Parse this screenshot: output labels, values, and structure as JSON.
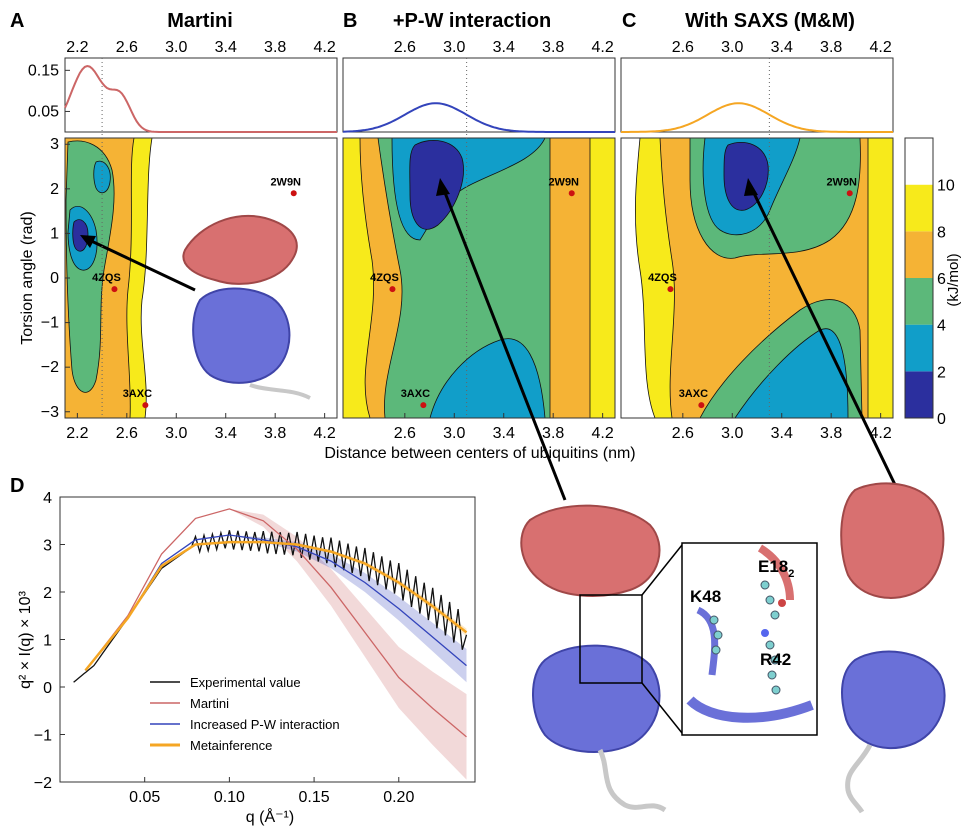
{
  "panels": [
    {
      "letter": "A",
      "title": "Martini"
    },
    {
      "letter": "B",
      "title": "+P-W interaction"
    },
    {
      "letter": "C",
      "title": "With SAXS (M&M)"
    },
    {
      "letter": "D",
      "title": ""
    }
  ],
  "colors": {
    "martini": "#cc6666",
    "pw": "#3344bb",
    "metainference": "#f5a623",
    "experimental": "#111111",
    "contour_levels": [
      "#2b2f9e",
      "#119ec9",
      "#5cb87a",
      "#f5b335",
      "#f7ea1b",
      "#ffffff"
    ],
    "structure_top": "#d87070",
    "structure_bottom": "#6a70d8",
    "structure_tail": "#c8c8c8"
  },
  "structures": {
    "labels": [
      "2W9N",
      "4ZQS",
      "3AXC"
    ],
    "residues": [
      "K48",
      "E18",
      "R42"
    ],
    "residue_subscript": "2"
  },
  "chart_data": [
    {
      "type": "heatmap",
      "panel": "A",
      "title": "Martini",
      "xlabel": "Distance between centers of ubiquitins (nm)",
      "ylabel": "Torsion angle (rad)",
      "xlim": [
        2.1,
        4.3
      ],
      "ylim": [
        -3.14,
        3.14
      ],
      "xticks": [
        "2.2",
        "2.6",
        "3.0",
        "3.4",
        "3.8",
        "4.2"
      ],
      "yticks": [
        "3",
        "2",
        "1",
        "0",
        "−1",
        "−2",
        "−3"
      ],
      "reference_points": [
        {
          "label": "2W9N",
          "x": 3.95,
          "y": 1.9
        },
        {
          "label": "4ZQS",
          "x": 2.5,
          "y": -0.25
        },
        {
          "label": "3AXC",
          "x": 2.75,
          "y": -2.85
        }
      ],
      "marginal": {
        "ylim": [
          0,
          0.18
        ],
        "yticks": [
          "0.15",
          "0.05"
        ],
        "peak_x": 2.28,
        "peak_y": 0.16
      }
    },
    {
      "type": "heatmap",
      "panel": "B",
      "title": "+P-W interaction",
      "xlim": [
        2.1,
        4.3
      ],
      "ylim": [
        -3.14,
        3.14
      ],
      "xticks": [
        "2.6",
        "3.0",
        "3.4",
        "3.8",
        "4.2"
      ],
      "reference_points": [
        {
          "label": "2W9N",
          "x": 3.95,
          "y": 1.9
        },
        {
          "label": "4ZQS",
          "x": 2.5,
          "y": -0.25
        },
        {
          "label": "3AXC",
          "x": 2.75,
          "y": -2.85
        }
      ],
      "marginal": {
        "peak_x": 2.85,
        "peak_y": 0.07
      }
    },
    {
      "type": "heatmap",
      "panel": "C",
      "title": "With SAXS (M&M)",
      "xlim": [
        2.1,
        4.3
      ],
      "ylim": [
        -3.14,
        3.14
      ],
      "xticks": [
        "2.6",
        "3.0",
        "3.4",
        "3.8",
        "4.2"
      ],
      "reference_points": [
        {
          "label": "2W9N",
          "x": 3.95,
          "y": 1.9
        },
        {
          "label": "4ZQS",
          "x": 2.5,
          "y": -0.25
        },
        {
          "label": "3AXC",
          "x": 2.75,
          "y": -2.85
        }
      ],
      "marginal": {
        "peak_x": 3.05,
        "peak_y": 0.07
      },
      "colorbar": {
        "label": "(kJ/mol)",
        "ticks": [
          "0",
          "2",
          "4",
          "6",
          "8",
          "10"
        ],
        "range": [
          0,
          12
        ]
      }
    },
    {
      "type": "line",
      "panel": "D",
      "xlabel": "q (Å⁻¹)",
      "ylabel": "q² × I(q) × 10³",
      "xlim": [
        0.0,
        0.245
      ],
      "ylim": [
        -2,
        4
      ],
      "xticks": [
        "0.05",
        "0.10",
        "0.15",
        "0.20"
      ],
      "yticks": [
        "4",
        "3",
        "2",
        "1",
        "0",
        "−1",
        "−2"
      ],
      "series": [
        {
          "name": "Experimental value",
          "color": "#111111",
          "x": [
            0.008,
            0.02,
            0.04,
            0.06,
            0.08,
            0.1,
            0.12,
            0.14,
            0.16,
            0.18,
            0.2,
            0.22,
            0.24
          ],
          "y": [
            0.1,
            0.45,
            1.45,
            2.5,
            3.0,
            3.1,
            3.05,
            3.0,
            2.85,
            2.6,
            2.25,
            1.7,
            1.1
          ]
        },
        {
          "name": "Martini",
          "color": "#cc6666",
          "x": [
            0.015,
            0.04,
            0.06,
            0.08,
            0.1,
            0.12,
            0.14,
            0.16,
            0.18,
            0.2,
            0.22,
            0.24
          ],
          "y": [
            0.35,
            1.5,
            2.8,
            3.55,
            3.75,
            3.5,
            2.9,
            2.1,
            1.15,
            0.2,
            -0.45,
            -1.05
          ]
        },
        {
          "name": "Increased P-W interaction",
          "color": "#3344bb",
          "x": [
            0.015,
            0.04,
            0.06,
            0.08,
            0.1,
            0.12,
            0.14,
            0.16,
            0.18,
            0.2,
            0.22,
            0.24
          ],
          "y": [
            0.35,
            1.45,
            2.6,
            3.1,
            3.2,
            3.1,
            2.95,
            2.65,
            2.2,
            1.65,
            1.05,
            0.45
          ]
        },
        {
          "name": "Metainference",
          "color": "#f5a623",
          "x": [
            0.015,
            0.04,
            0.06,
            0.08,
            0.1,
            0.12,
            0.14,
            0.16,
            0.18,
            0.2,
            0.22,
            0.24
          ],
          "y": [
            0.35,
            1.45,
            2.55,
            3.0,
            3.05,
            3.05,
            3.0,
            2.85,
            2.6,
            2.2,
            1.7,
            1.15
          ]
        }
      ]
    }
  ]
}
